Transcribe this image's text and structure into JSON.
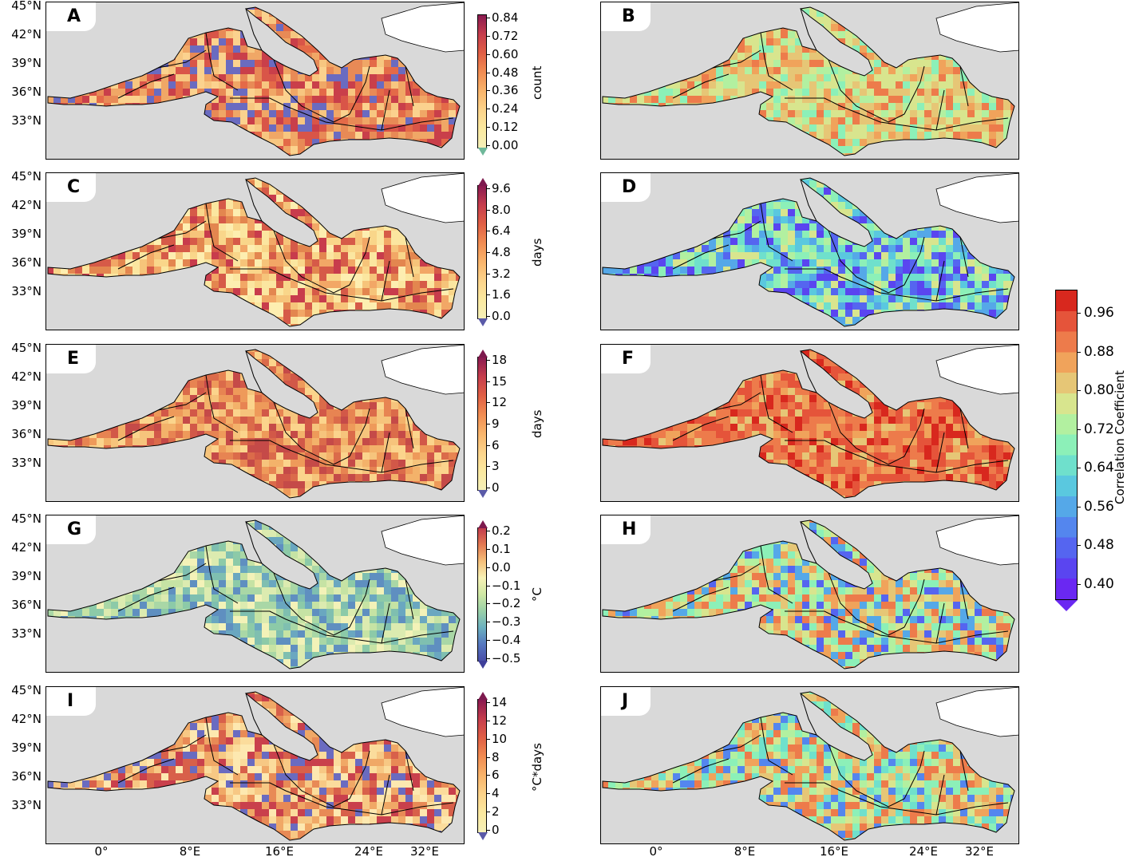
{
  "lat_labels": [
    "45°N",
    "42°N",
    "39°N",
    "36°N",
    "33°N"
  ],
  "lon_labels": [
    "0°",
    "8°E",
    "16°E",
    "24°E",
    "32°E"
  ],
  "panels_left": [
    {
      "label": "A",
      "unit": "count",
      "ticks": [
        "0.84",
        "0.72",
        "0.60",
        "0.48",
        "0.36",
        "0.24",
        "0.12",
        "0.00"
      ],
      "extend_top": false,
      "extend_bottom": true
    },
    {
      "label": "C",
      "unit": "days",
      "ticks": [
        "9.6",
        "8.0",
        "6.4",
        "4.8",
        "3.2",
        "1.6",
        "0.0"
      ],
      "extend_top": true,
      "extend_bottom": true
    },
    {
      "label": "E",
      "unit": "days",
      "ticks": [
        "18",
        "15",
        "12",
        "9",
        "6",
        "3",
        "0"
      ],
      "extend_top": true,
      "extend_bottom": true
    },
    {
      "label": "G",
      "unit": "°C",
      "ticks": [
        "0.2",
        "0.1",
        "0.0",
        "−0.1",
        "−0.2",
        "−0.3",
        "−0.4",
        "−0.5"
      ],
      "extend_top": true,
      "extend_bottom": true
    },
    {
      "label": "I",
      "unit": "°C*days",
      "ticks": [
        "14",
        "12",
        "10",
        "8",
        "6",
        "4",
        "2",
        "0"
      ],
      "extend_top": true,
      "extend_bottom": true
    }
  ],
  "panels_right": [
    {
      "label": "B",
      "tone": "mixed-warm"
    },
    {
      "label": "D",
      "tone": "mixed-cool"
    },
    {
      "label": "F",
      "tone": "warm"
    },
    {
      "label": "H",
      "tone": "mixed"
    },
    {
      "label": "J",
      "tone": "mixed"
    }
  ],
  "correlation_colorbar": {
    "label": "Correlation Coefficient",
    "ticks": [
      "0.96",
      "0.88",
      "0.80",
      "0.72",
      "0.64",
      "0.56",
      "0.48",
      "0.40"
    ],
    "colors": [
      "#d8281e",
      "#e5543a",
      "#ed7b4b",
      "#f0a35b",
      "#e6c676",
      "#d8e58e",
      "#b2f0a0",
      "#8cf0b8",
      "#6fe0cc",
      "#5ac8df",
      "#55a8e8",
      "#5486ee",
      "#5565f0",
      "#5a45f0",
      "#6a28f2"
    ]
  },
  "spectral_colors": [
    "#f0e68c",
    "#fbe9a0",
    "#fcd38a",
    "#f9b46b",
    "#f18c52",
    "#e05f45",
    "#c53d4d",
    "#9e1a4f"
  ],
  "legend_land_color": "#d9d9d9"
}
